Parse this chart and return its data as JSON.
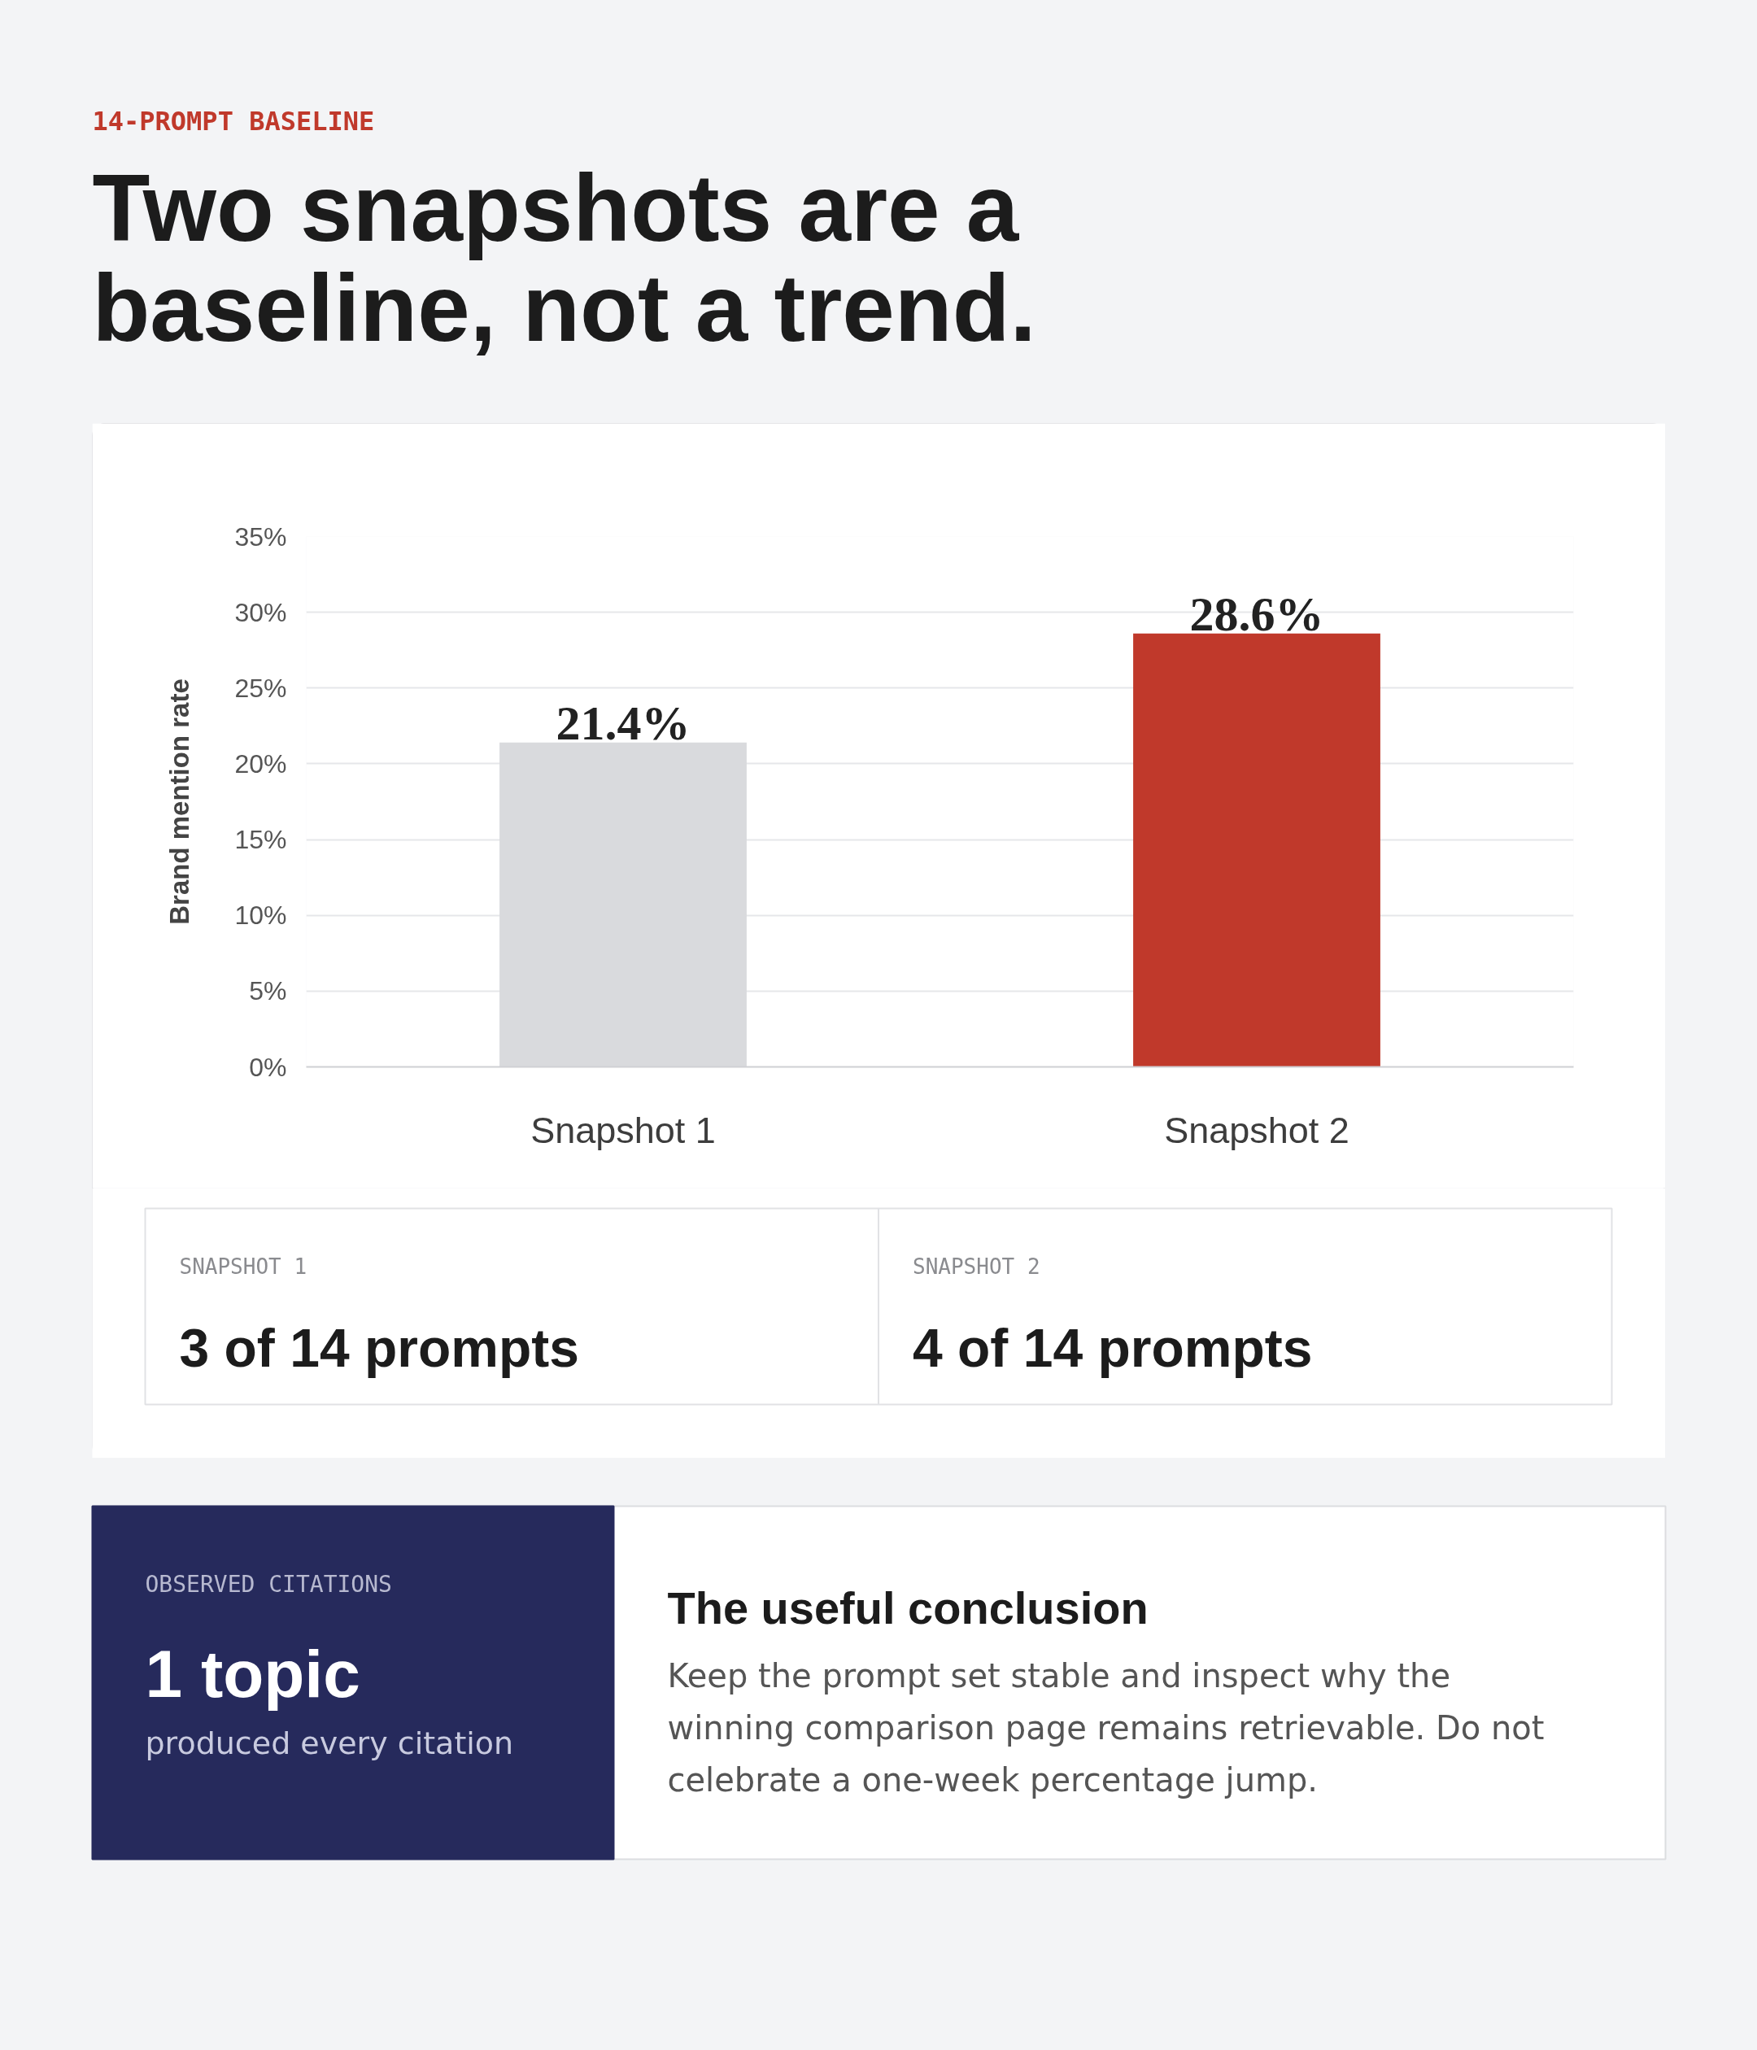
{
  "chart_data": {
    "type": "bar",
    "subtitle": "14-PROMPT BASELINE",
    "title": "Two snapshots are a baseline, not a trend.",
    "ylabel": "Brand mention rate",
    "categories": [
      "Snapshot 1",
      "Snapshot 2"
    ],
    "values": [
      21.4,
      28.6
    ],
    "colors": [
      "#d9dadd",
      "#c0392b"
    ],
    "value_labels": [
      "21.4%",
      "28.6%"
    ],
    "ylim": [
      0,
      35
    ],
    "yticks": [
      {
        "value": 0,
        "label": "0%"
      },
      {
        "value": 5,
        "label": "5%"
      },
      {
        "value": 10,
        "label": "10%"
      },
      {
        "value": 15,
        "label": "15%"
      },
      {
        "value": 20,
        "label": "20%"
      },
      {
        "value": 25,
        "label": "25%"
      },
      {
        "value": 30,
        "label": "30%"
      },
      {
        "value": 35,
        "label": "35%"
      }
    ],
    "grid": "y",
    "annotations": [
      "SNAPSHOT 1",
      "3 of 14 prompts",
      "SNAPSHOT 2",
      "4 of 14 prompts",
      "OBSERVED CITATIONS",
      "1 topic",
      "produced every citation",
      "The useful conclusion",
      "Keep the prompt set stable and inspect why the winning comparison page remains retrievable. Do not celebrate a one-week percentage jump."
    ]
  }
}
